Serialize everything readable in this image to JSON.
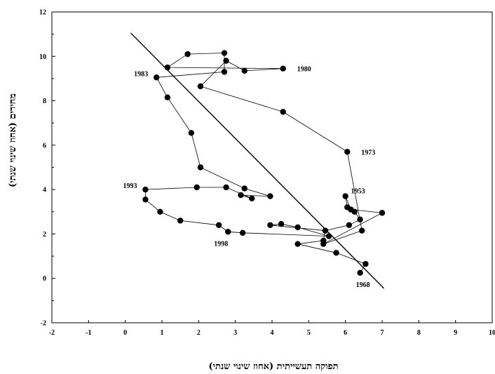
{
  "chart_data": {
    "type": "scatter",
    "title": "",
    "xlabel": "תפוקה תעשייתית (אחוז שינוי שנתי)",
    "ylabel": "מחירים (אחוז שינוי שנתי)",
    "xlim": [
      -2,
      10
    ],
    "ylim": [
      -2,
      12
    ],
    "xticks": [
      -2,
      -1,
      0,
      1,
      2,
      3,
      4,
      5,
      6,
      7,
      8,
      9,
      10
    ],
    "yticks": [
      -2,
      0,
      2,
      4,
      6,
      8,
      10,
      12
    ],
    "xtick_labels": [
      "-2",
      "-1",
      "0",
      "1",
      "2",
      "3",
      "4",
      "5",
      "6",
      "7",
      "8",
      "9",
      "10"
    ],
    "ytick_labels": [
      "-2",
      "0",
      "2",
      "4",
      "6",
      "8",
      "10",
      "12"
    ],
    "grid": false,
    "series": [
      {
        "connected": true,
        "points": [
          {
            "x": 6.4,
            "y": 0.25,
            "label": "1968"
          },
          {
            "x": 6.55,
            "y": 0.65
          },
          {
            "x": 5.75,
            "y": 1.15
          },
          {
            "x": 4.7,
            "y": 1.55
          },
          {
            "x": 5.4,
            "y": 1.7
          },
          {
            "x": 5.45,
            "y": 2.15
          },
          {
            "x": 6.1,
            "y": 2.4
          },
          {
            "x": 6.4,
            "y": 2.65
          },
          {
            "x": 6.25,
            "y": 3.0
          },
          {
            "x": 6.05,
            "y": 3.2
          },
          {
            "x": 6.0,
            "y": 3.7,
            "label": "1953"
          },
          {
            "x": 6.15,
            "y": 3.1
          },
          {
            "x": 7.0,
            "y": 2.95
          },
          {
            "x": 5.4,
            "y": 1.55
          },
          {
            "x": 6.45,
            "y": 2.15
          },
          {
            "x": 6.05,
            "y": 5.7,
            "label": "1973"
          },
          {
            "x": 4.3,
            "y": 7.5
          },
          {
            "x": 2.05,
            "y": 8.65
          },
          {
            "x": 2.75,
            "y": 9.8
          },
          {
            "x": 3.25,
            "y": 9.35
          },
          {
            "x": 4.3,
            "y": 9.45,
            "label": "1980"
          },
          {
            "x": 1.15,
            "y": 9.5
          },
          {
            "x": 1.7,
            "y": 10.1
          },
          {
            "x": 2.7,
            "y": 10.15
          },
          {
            "x": 2.7,
            "y": 9.3
          },
          {
            "x": 0.85,
            "y": 9.05,
            "label": "1983"
          },
          {
            "x": 1.15,
            "y": 8.15
          },
          {
            "x": 1.8,
            "y": 6.55
          },
          {
            "x": 2.05,
            "y": 5.0
          },
          {
            "x": 3.25,
            "y": 4.05
          },
          {
            "x": 3.95,
            "y": 3.7
          },
          {
            "x": 3.15,
            "y": 3.75
          },
          {
            "x": 3.45,
            "y": 3.6
          },
          {
            "x": 2.75,
            "y": 4.1
          },
          {
            "x": 1.95,
            "y": 4.1
          },
          {
            "x": 0.55,
            "y": 4.0,
            "label": "1993"
          },
          {
            "x": 0.55,
            "y": 3.55
          },
          {
            "x": 0.95,
            "y": 3.0
          },
          {
            "x": 1.5,
            "y": 2.6
          },
          {
            "x": 2.55,
            "y": 2.4
          },
          {
            "x": 2.8,
            "y": 2.1,
            "label": "1998"
          },
          {
            "x": 3.2,
            "y": 2.05
          },
          {
            "x": 5.55,
            "y": 1.9
          },
          {
            "x": 4.7,
            "y": 2.3
          },
          {
            "x": 4.25,
            "y": 2.45
          },
          {
            "x": 3.95,
            "y": 2.4
          },
          {
            "x": 5.45,
            "y": 2.15
          }
        ]
      }
    ],
    "trend_line": {
      "x": [
        0.15,
        7.05
      ],
      "y": [
        11.05,
        -0.45
      ]
    }
  }
}
